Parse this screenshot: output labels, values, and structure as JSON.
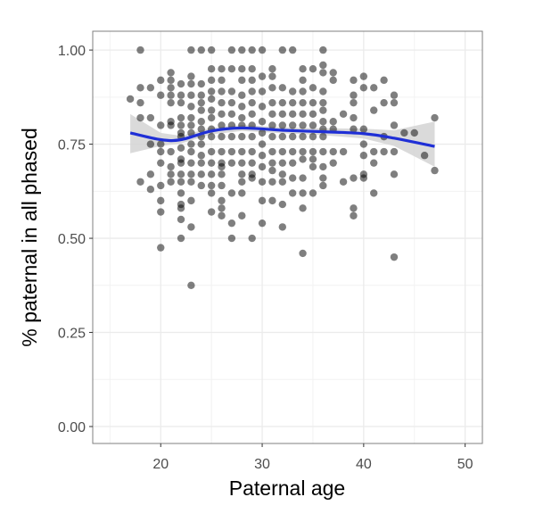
{
  "chart_data": {
    "type": "scatter",
    "title": "",
    "xlabel": "Paternal age",
    "ylabel": "% paternal in all phased",
    "xlim": [
      13.3,
      51.7
    ],
    "ylim": [
      -0.045,
      1.05
    ],
    "x_ticks": [
      20,
      30,
      40,
      50
    ],
    "x_tick_labels": [
      "20",
      "30",
      "40",
      "50"
    ],
    "y_ticks": [
      0,
      0.25,
      0.5,
      0.75,
      1.0
    ],
    "y_tick_labels": [
      "0.00",
      "0.25",
      "0.50",
      "0.75",
      "1.00"
    ],
    "grid": true,
    "legend": "none",
    "colors": {
      "points": "#000000",
      "smooth_line": "#1f2fd6",
      "confidence_band": "#d3d3d3",
      "panel_border": "#7f7f7f",
      "grid": "#ebebeb"
    },
    "points_by_x": [
      {
        "x": 17,
        "y": [
          0.87
        ]
      },
      {
        "x": 18,
        "y": [
          1.0,
          0.9,
          0.86,
          0.82,
          0.65
        ]
      },
      {
        "x": 19,
        "y": [
          0.9,
          0.82,
          0.75,
          0.67,
          0.63
        ]
      },
      {
        "x": 20,
        "y": [
          0.92,
          0.88,
          0.8,
          0.75,
          0.73,
          0.7,
          0.64,
          0.6,
          0.57,
          0.475
        ]
      },
      {
        "x": 21,
        "y": [
          0.94,
          0.92,
          0.9,
          0.88,
          0.86,
          0.81,
          0.8,
          0.73,
          0.69,
          0.67,
          0.65
        ]
      },
      {
        "x": 22,
        "y": [
          0.91,
          0.88,
          0.86,
          0.82,
          0.8,
          0.78,
          0.77,
          0.74,
          0.71,
          0.7,
          0.67,
          0.65,
          0.62,
          0.59,
          0.58,
          0.55,
          0.5
        ]
      },
      {
        "x": 23,
        "y": [
          1.0,
          0.93,
          0.91,
          0.88,
          0.85,
          0.82,
          0.8,
          0.78,
          0.75,
          0.73,
          0.7,
          0.67,
          0.65,
          0.6,
          0.53,
          0.375
        ]
      },
      {
        "x": 24,
        "y": [
          1.0,
          0.91,
          0.88,
          0.86,
          0.84,
          0.81,
          0.79,
          0.77,
          0.75,
          0.72,
          0.7,
          0.67,
          0.64
        ]
      },
      {
        "x": 25,
        "y": [
          1.0,
          0.95,
          0.92,
          0.89,
          0.87,
          0.84,
          0.82,
          0.79,
          0.77,
          0.73,
          0.7,
          0.67,
          0.64,
          0.62,
          0.57
        ]
      },
      {
        "x": 26,
        "y": [
          0.95,
          0.92,
          0.89,
          0.86,
          0.83,
          0.8,
          0.77,
          0.73,
          0.7,
          0.69,
          0.67,
          0.64,
          0.6,
          0.58,
          0.56
        ]
      },
      {
        "x": 27,
        "y": [
          1.0,
          0.95,
          0.89,
          0.86,
          0.83,
          0.8,
          0.77,
          0.73,
          0.7,
          0.62,
          0.54,
          0.5
        ]
      },
      {
        "x": 28,
        "y": [
          1.0,
          0.95,
          0.92,
          0.88,
          0.85,
          0.82,
          0.8,
          0.77,
          0.73,
          0.7,
          0.67,
          0.65,
          0.62,
          0.56
        ]
      },
      {
        "x": 29,
        "y": [
          1.0,
          0.95,
          0.92,
          0.89,
          0.86,
          0.83,
          0.8,
          0.77,
          0.73,
          0.7,
          0.67,
          0.66,
          0.5
        ]
      },
      {
        "x": 30,
        "y": [
          1.0,
          0.93,
          0.89,
          0.85,
          0.81,
          0.78,
          0.75,
          0.72,
          0.69,
          0.65,
          0.6,
          0.54
        ]
      },
      {
        "x": 31,
        "y": [
          0.95,
          0.93,
          0.9,
          0.86,
          0.83,
          0.8,
          0.77,
          0.73,
          0.7,
          0.68,
          0.65,
          0.6
        ]
      },
      {
        "x": 32,
        "y": [
          1.0,
          0.9,
          0.86,
          0.83,
          0.8,
          0.77,
          0.73,
          0.7,
          0.67,
          0.65,
          0.59,
          0.53
        ]
      },
      {
        "x": 33,
        "y": [
          1.0,
          0.89,
          0.86,
          0.83,
          0.8,
          0.77,
          0.73,
          0.7,
          0.66,
          0.62
        ]
      },
      {
        "x": 34,
        "y": [
          0.95,
          0.92,
          0.89,
          0.86,
          0.83,
          0.8,
          0.77,
          0.73,
          0.71,
          0.66,
          0.62,
          0.58,
          0.46
        ]
      },
      {
        "x": 35,
        "y": [
          0.95,
          0.9,
          0.86,
          0.83,
          0.8,
          0.77,
          0.73,
          0.71,
          0.69,
          0.62
        ]
      },
      {
        "x": 36,
        "y": [
          1.0,
          0.96,
          0.94,
          0.89,
          0.86,
          0.84,
          0.81,
          0.79,
          0.77,
          0.73,
          0.69,
          0.66,
          0.64
        ]
      },
      {
        "x": 37,
        "y": [
          0.94,
          0.92,
          0.81,
          0.79,
          0.73,
          0.7
        ]
      },
      {
        "x": 38,
        "y": [
          0.83,
          0.73,
          0.65
        ]
      },
      {
        "x": 39,
        "y": [
          0.92,
          0.88,
          0.86,
          0.82,
          0.79,
          0.66,
          0.58,
          0.56
        ]
      },
      {
        "x": 40,
        "y": [
          0.93,
          0.9,
          0.79,
          0.75,
          0.72,
          0.67,
          0.66
        ]
      },
      {
        "x": 41,
        "y": [
          0.9,
          0.84,
          0.73,
          0.7,
          0.62
        ]
      },
      {
        "x": 42,
        "y": [
          0.92,
          0.86,
          0.77,
          0.73
        ]
      },
      {
        "x": 43,
        "y": [
          0.88,
          0.86,
          0.8,
          0.73,
          0.67,
          0.45
        ]
      },
      {
        "x": 44,
        "y": [
          0.78
        ]
      },
      {
        "x": 45,
        "y": [
          0.78
        ]
      },
      {
        "x": 46,
        "y": [
          0.72
        ]
      },
      {
        "x": 47,
        "y": [
          0.82,
          0.68
        ]
      }
    ],
    "smooth": {
      "method": "loess",
      "x": [
        17,
        20,
        22,
        25,
        28,
        32,
        36,
        40,
        43,
        47
      ],
      "y": [
        0.78,
        0.762,
        0.762,
        0.785,
        0.793,
        0.787,
        0.783,
        0.778,
        0.766,
        0.744
      ],
      "lower": [
        0.726,
        0.745,
        0.752,
        0.776,
        0.785,
        0.779,
        0.774,
        0.765,
        0.745,
        0.69
      ],
      "upper": [
        0.83,
        0.78,
        0.772,
        0.794,
        0.801,
        0.795,
        0.792,
        0.791,
        0.787,
        0.81
      ]
    }
  }
}
